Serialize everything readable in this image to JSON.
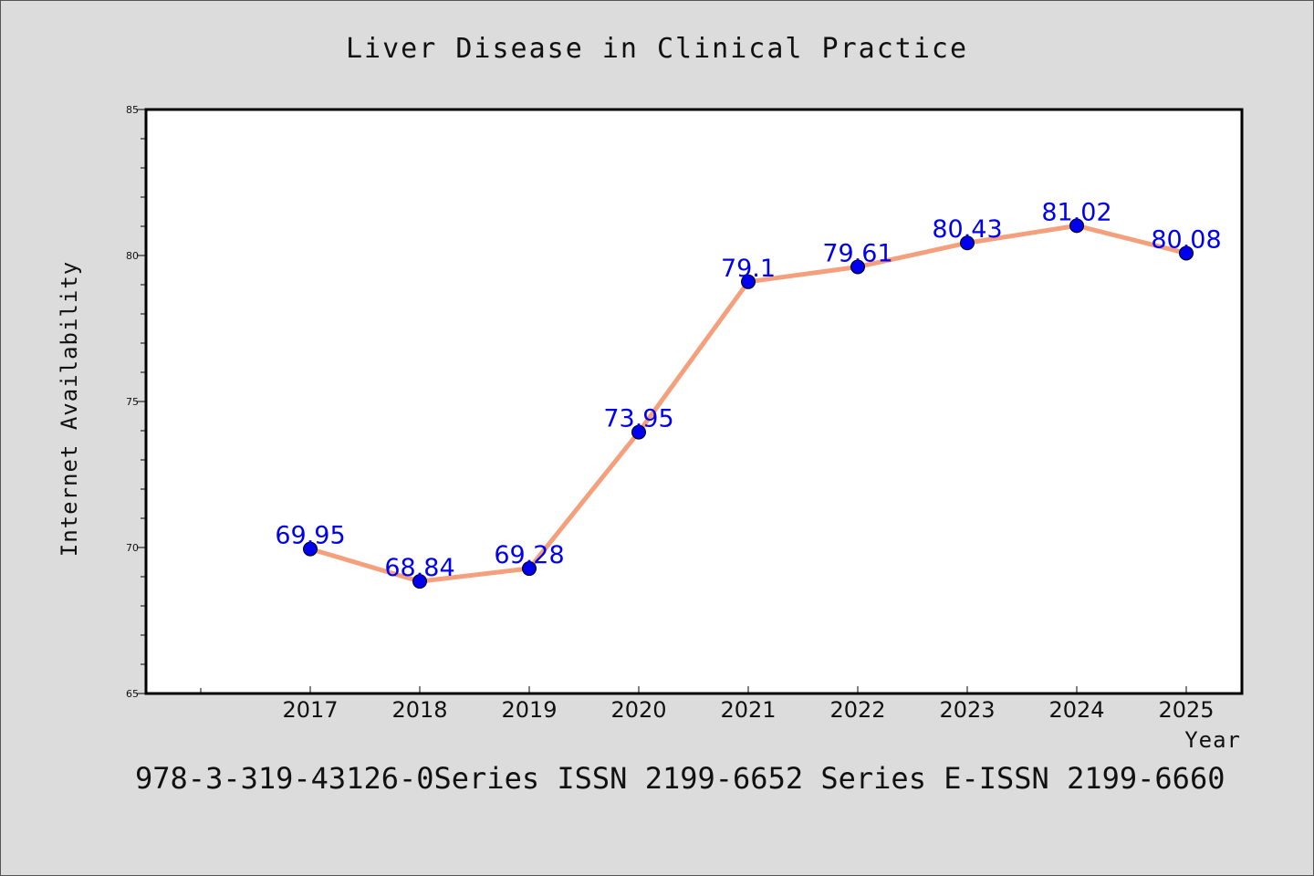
{
  "chart_data": {
    "type": "line",
    "title": "Liver Disease in Clinical Practice",
    "xlabel": "Year",
    "ylabel": "Internet Availability",
    "x": [
      "2017",
      "2018",
      "2019",
      "2020",
      "2021",
      "2022",
      "2023",
      "2024",
      "2025"
    ],
    "series": [
      {
        "values": [
          69.95,
          68.84,
          69.28,
          73.95,
          79.1,
          79.61,
          80.43,
          81.02,
          80.08
        ],
        "labels": [
          "69.95",
          "68.84",
          "69.28",
          "73.95",
          "79.1",
          "79.61",
          "80.43",
          "81.02",
          "80.08"
        ],
        "line_color": "#f4a07c",
        "marker_color": "#0000ee"
      }
    ],
    "ylim": [
      65,
      85
    ],
    "yticks": [
      "65",
      "70",
      "75",
      "80",
      "85"
    ],
    "grid": false,
    "legend": "none"
  },
  "footer_text": "978-3-319-43126-0Series ISSN 2199-6652 Series E-ISSN 2199-6660",
  "colors": {
    "background": "#dcdcdc",
    "plot_background": "#ffffff",
    "line": "#f4a07c",
    "marker": "#0000ee",
    "label": "#0000ee"
  }
}
